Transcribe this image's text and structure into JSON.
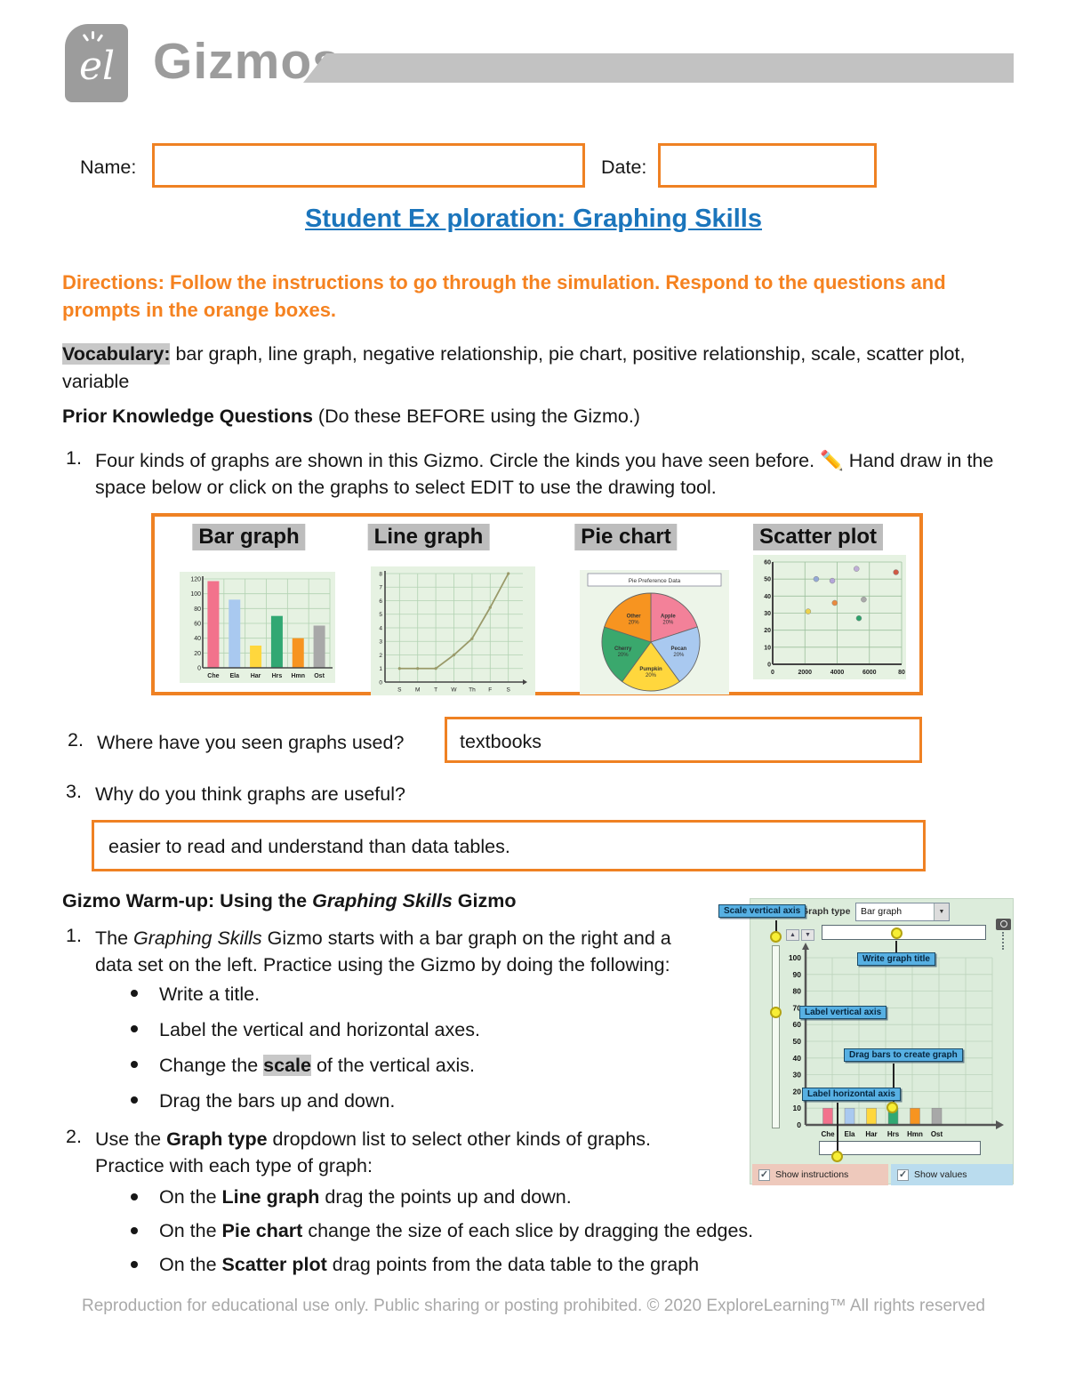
{
  "page": {
    "brand": "Gizmos",
    "logo_script": "el",
    "footer": "Reproduction for educational use only. Public sharing or posting prohibited. © 2020 ExploreLearning™ All rights reserved"
  },
  "colors": {
    "accent_orange": "#ef8123",
    "orange_text": "#f58220",
    "title_blue": "#1b75bc",
    "brand_gray": "#9c9c9c",
    "highlight_gray": "#c8c8c8",
    "callout_blue": "#57b0e3",
    "handle_yellow": "#f7ee35"
  },
  "form": {
    "name_label": "Name:",
    "name_value": "",
    "date_label": "Date:",
    "date_value": ""
  },
  "title": "Student Ex ploration: Graphing Skills",
  "directions": "Directions: Follow the instructions to go through the simulation. Respond to the questions and prompts in the orange boxes.",
  "vocabulary": {
    "label": "Vocabulary:",
    "terms": "bar graph, line graph, negative relationship, pie chart, positive relationship, scale, scatter plot, variable"
  },
  "prior": {
    "bold": "Prior Knowledge Questions",
    "rest": " (Do these BEFORE using the Gizmo.)"
  },
  "q1": {
    "number": "1.",
    "before": "Four kinds of graphs are shown in this Gizmo. Circle the kinds you have seen before. ",
    "icon": "✏️",
    "after": " Hand draw in the space below or click on the graphs to select EDIT to use the drawing tool."
  },
  "q2": {
    "number": "2.",
    "text": "Where have you seen graphs used?",
    "answer": "textbooks"
  },
  "q3": {
    "number": "3.",
    "text": "Why do you think graphs are useful?",
    "answer": "easier to read and understand than data tables."
  },
  "chart_data": {
    "bar": {
      "type": "bar",
      "label": "Bar graph",
      "categories": [
        "Che",
        "Ela",
        "Har",
        "Hrs",
        "Hmn",
        "Ost"
      ],
      "values": [
        117,
        92,
        30,
        70,
        40,
        57
      ],
      "colors": [
        "#f2728c",
        "#a9c9f0",
        "#ffd73d",
        "#31a873",
        "#f79420",
        "#a8a8a8"
      ],
      "ymax": 120,
      "ystep": 20
    },
    "line": {
      "type": "line",
      "label": "Line graph",
      "x": [
        "S",
        "M",
        "T",
        "W",
        "Th",
        "F",
        "S"
      ],
      "values": [
        1,
        1,
        1,
        2,
        3.2,
        5.5,
        8
      ],
      "ymax": 8,
      "ystep": 1,
      "color": "#9a9a6a"
    },
    "pie": {
      "type": "pie",
      "label": "Pie chart",
      "title": "Pie Preference Data",
      "slices": [
        {
          "label": "Apple",
          "pct": 20,
          "color": "#f38199"
        },
        {
          "label": "Pecan",
          "pct": 20,
          "color": "#a9c9f0"
        },
        {
          "label": "Pumpkin",
          "pct": 20,
          "color": "#ffd73d"
        },
        {
          "label": "Cherry",
          "pct": 20,
          "color": "#3aa86d"
        },
        {
          "label": "Other",
          "pct": 20,
          "color": "#f79420"
        }
      ]
    },
    "scatter": {
      "type": "scatter",
      "label": "Scatter plot",
      "xmax": 8000,
      "ymax": 60,
      "ystep": 10,
      "xticks": [
        "0",
        "2000",
        "4000",
        "6000",
        "80"
      ],
      "points": [
        {
          "x": 2200,
          "y": 31,
          "color": "#ecd24c"
        },
        {
          "x": 2700,
          "y": 50,
          "color": "#93a9d6"
        },
        {
          "x": 3700,
          "y": 49,
          "color": "#b3a5d9"
        },
        {
          "x": 3850,
          "y": 36,
          "color": "#e98a3f"
        },
        {
          "x": 5200,
          "y": 56,
          "color": "#beaed6"
        },
        {
          "x": 5350,
          "y": 27,
          "color": "#2ea36b"
        },
        {
          "x": 5650,
          "y": 38,
          "color": "#a9a9a9"
        },
        {
          "x": 7650,
          "y": 54,
          "color": "#cf5a45"
        }
      ]
    },
    "gizmo_bar": {
      "type": "bar",
      "categories": [
        "Che",
        "Ela",
        "Har",
        "Hrs",
        "Hmn",
        "Ost"
      ],
      "values": [
        10,
        10,
        10,
        10,
        10,
        10
      ],
      "colors": [
        "#f2728c",
        "#a9c9f0",
        "#ffd73d",
        "#31a873",
        "#f79420",
        "#a8a8a8"
      ],
      "ymax": 100,
      "ystep": 10
    }
  },
  "warmup": {
    "heading": {
      "pre": "Gizmo Warm-up: Using the ",
      "italic": "Graphing Skills",
      "post": " Gizmo"
    },
    "item1": {
      "number": "1.",
      "pre": "The ",
      "italic": "Graphing Skills",
      "post": " Gizmo starts with a bar graph on the right and a data set on the left. Practice using the Gizmo by doing the following:"
    },
    "bullets1": [
      {
        "pre": "Write a title.",
        "hl": "",
        "post": ""
      },
      {
        "pre": "Label the vertical and horizontal axes.",
        "hl": "",
        "post": ""
      },
      {
        "pre": "Change the ",
        "hl": "scale",
        "post": " of the vertical axis."
      },
      {
        "pre": "Drag the bars up and down.",
        "hl": "",
        "post": ""
      }
    ],
    "item2": {
      "number": "2.",
      "pre": "Use the ",
      "bold": "Graph type",
      "post": " dropdown list to select other kinds of graphs.",
      "line2": "Practice with each type of graph:"
    },
    "bullets2": [
      {
        "pre": "On the ",
        "bold": "Line graph",
        "post": " drag the points up and down."
      },
      {
        "pre": "On the ",
        "bold": "Pie chart",
        "post": " change the size of each slice by dragging the edges."
      },
      {
        "pre": "On the ",
        "bold": "Scatter plot",
        "post": " drag points from the data table to the graph"
      }
    ]
  },
  "gizmo": {
    "graph_type_label": "Graph type",
    "dropdown_value": "Bar graph",
    "dropdown_arrow": "▼",
    "up_glyph": "▲",
    "down_glyph": "▼",
    "check_glyph": "✓",
    "callouts": {
      "scale_vertical": "Scale vertical axis",
      "write_title": "Write graph title",
      "label_vertical": "Label vertical axis",
      "drag_bars": "Drag bars to create graph",
      "label_horizontal": "Label horizontal axis"
    },
    "show_instructions": "Show instructions",
    "show_values": "Show values"
  }
}
